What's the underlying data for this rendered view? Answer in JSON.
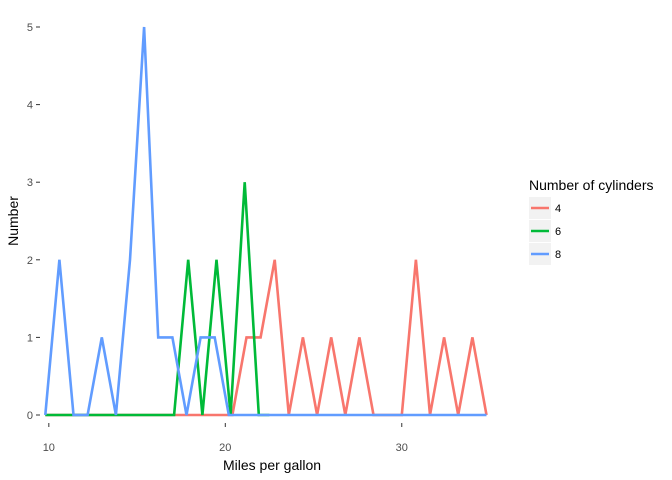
{
  "chart_data": {
    "type": "line",
    "xlabel": "Miles per gallon",
    "ylabel": "Number",
    "xlim": [
      9.5,
      35
    ],
    "ylim": [
      0,
      5
    ],
    "x_ticks": [
      10,
      20,
      30
    ],
    "y_ticks": [
      0,
      1,
      2,
      3,
      4,
      5
    ],
    "grid": false,
    "legend": {
      "title": "Number of cylinders",
      "position": "right"
    },
    "series": [
      {
        "name": "4",
        "color": "#F8766D",
        "x": [
          9.8,
          19.6,
          20.4,
          21.2,
          22.0,
          22.8,
          23.6,
          24.4,
          25.2,
          26.0,
          26.8,
          27.6,
          28.4,
          29.2,
          30.0,
          30.8,
          31.6,
          32.4,
          33.2,
          34.0,
          34.8
        ],
        "y": [
          0,
          0,
          0,
          1,
          1,
          2,
          0,
          1,
          0,
          1,
          0,
          1,
          0,
          0,
          0,
          2,
          0,
          1,
          0,
          1,
          0
        ]
      },
      {
        "name": "6",
        "color": "#00BA38",
        "x": [
          9.8,
          17.1,
          17.9,
          18.7,
          19.5,
          20.3,
          21.1,
          21.9,
          22.5
        ],
        "y": [
          0,
          0,
          2,
          0,
          2,
          0,
          3,
          0,
          0
        ]
      },
      {
        "name": "8",
        "color": "#619CFF",
        "x": [
          9.8,
          10.6,
          11.4,
          12.2,
          13.0,
          13.8,
          14.6,
          15.4,
          16.2,
          17.0,
          17.8,
          18.6,
          19.4,
          20.2,
          21.0,
          34.8
        ],
        "y": [
          0,
          2,
          0,
          0,
          1,
          0,
          2,
          5,
          1,
          1,
          0,
          1,
          1,
          0,
          0,
          0
        ]
      }
    ]
  }
}
